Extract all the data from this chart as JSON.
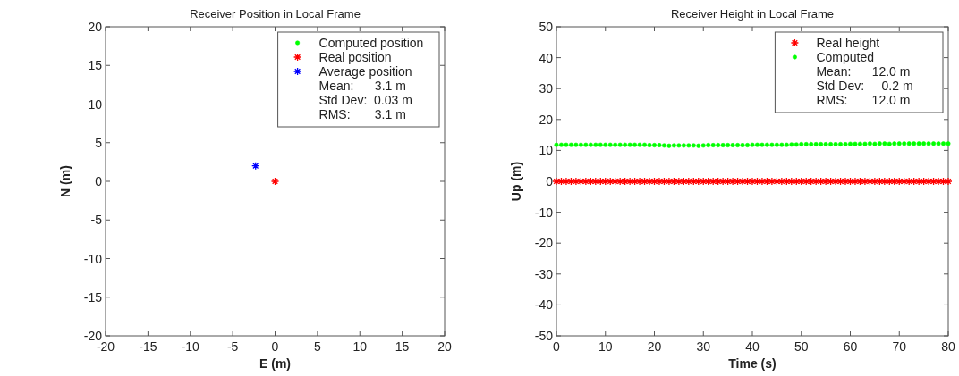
{
  "chart_data": [
    {
      "type": "scatter",
      "title": "Receiver Position in Local Frame",
      "xlabel": "E (m)",
      "ylabel": "N (m)",
      "xlim": [
        -20,
        20
      ],
      "ylim": [
        -20,
        20
      ],
      "xticks": [
        -20,
        -15,
        -10,
        -5,
        0,
        5,
        10,
        15,
        20
      ],
      "yticks": [
        -20,
        -15,
        -10,
        -5,
        0,
        5,
        10,
        15,
        20
      ],
      "grid": false,
      "legend": "top right",
      "series": [
        {
          "name": "Computed position",
          "color": "#00ff00",
          "marker": "circle"
        },
        {
          "name": "Real position",
          "color": "#ff0000",
          "marker": "cross",
          "x": [
            0
          ],
          "values": [
            0
          ]
        },
        {
          "name": "Average position",
          "color": "#0000ff",
          "marker": "cross",
          "x": [
            -2.3
          ],
          "values": [
            2.0
          ]
        }
      ],
      "annotations": [
        "Mean:      3.1 m",
        "Std Dev:  0.03 m",
        "RMS:       3.1 m"
      ]
    },
    {
      "type": "scatter",
      "title": "Receiver Height in Local Frame",
      "xlabel": "Time (s)",
      "ylabel": "Up (m)",
      "xlim": [
        0,
        80
      ],
      "ylim": [
        -50,
        50
      ],
      "xticks": [
        0,
        10,
        20,
        30,
        40,
        50,
        60,
        70,
        80
      ],
      "yticks": [
        -50,
        -40,
        -30,
        -20,
        -10,
        0,
        10,
        20,
        30,
        40,
        50
      ],
      "grid": false,
      "legend": "top right",
      "x": [
        0,
        1,
        2,
        3,
        4,
        5,
        6,
        7,
        8,
        9,
        10,
        11,
        12,
        13,
        14,
        15,
        16,
        17,
        18,
        19,
        20,
        21,
        22,
        23,
        24,
        25,
        26,
        27,
        28,
        29,
        30,
        31,
        32,
        33,
        34,
        35,
        36,
        37,
        38,
        39,
        40,
        41,
        42,
        43,
        44,
        45,
        46,
        47,
        48,
        49,
        50,
        51,
        52,
        53,
        54,
        55,
        56,
        57,
        58,
        59,
        60,
        61,
        62,
        63,
        64,
        65,
        66,
        67,
        68,
        69,
        70,
        71,
        72,
        73,
        74,
        75,
        76,
        77,
        78,
        79,
        80
      ],
      "series": [
        {
          "name": "Real height",
          "color": "#ff0000",
          "marker": "cross",
          "values": [
            0,
            0,
            0,
            0,
            0,
            0,
            0,
            0,
            0,
            0,
            0,
            0,
            0,
            0,
            0,
            0,
            0,
            0,
            0,
            0,
            0,
            0,
            0,
            0,
            0,
            0,
            0,
            0,
            0,
            0,
            0,
            0,
            0,
            0,
            0,
            0,
            0,
            0,
            0,
            0,
            0,
            0,
            0,
            0,
            0,
            0,
            0,
            0,
            0,
            0,
            0,
            0,
            0,
            0,
            0,
            0,
            0,
            0,
            0,
            0,
            0,
            0,
            0,
            0,
            0,
            0,
            0,
            0,
            0,
            0,
            0,
            0,
            0,
            0,
            0,
            0,
            0,
            0,
            0,
            0,
            0
          ]
        },
        {
          "name": "Computed",
          "color": "#00ff00",
          "marker": "circle",
          "values": [
            11.8,
            11.8,
            11.8,
            11.8,
            11.8,
            11.8,
            11.8,
            11.8,
            11.8,
            11.8,
            11.8,
            11.8,
            11.8,
            11.8,
            11.8,
            11.8,
            11.8,
            11.8,
            11.8,
            11.7,
            11.7,
            11.7,
            11.6,
            11.5,
            11.6,
            11.6,
            11.6,
            11.6,
            11.6,
            11.5,
            11.6,
            11.7,
            11.7,
            11.7,
            11.7,
            11.7,
            11.7,
            11.7,
            11.7,
            11.7,
            11.8,
            11.8,
            11.8,
            11.8,
            11.8,
            11.8,
            11.8,
            11.8,
            11.9,
            11.9,
            12.0,
            12.0,
            12.0,
            12.0,
            12.0,
            12.0,
            12.0,
            12.0,
            12.0,
            12.0,
            12.1,
            12.1,
            12.1,
            12.1,
            12.2,
            12.1,
            12.2,
            12.2,
            12.1,
            12.2,
            12.2,
            12.2,
            12.2,
            12.2,
            12.2,
            12.2,
            12.2,
            12.2,
            12.2,
            12.2,
            12.2
          ]
        }
      ],
      "annotations": [
        "Mean:      12.0 m",
        "Std Dev:     0.2 m",
        "RMS:       12.0 m"
      ]
    }
  ]
}
